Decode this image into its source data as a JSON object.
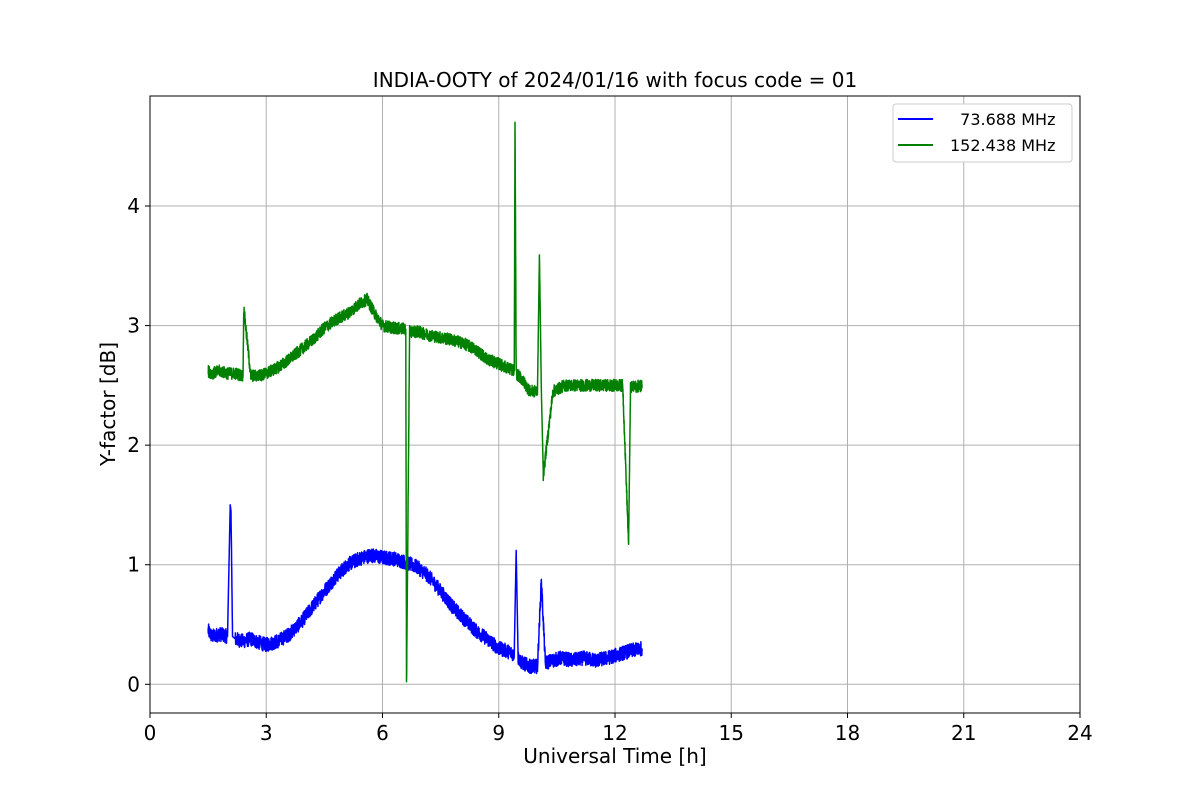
{
  "chart_data": {
    "type": "line",
    "title": "INDIA-OOTY of 2024/01/16 with focus code = 01",
    "xlabel": "Universal Time [h]",
    "ylabel": "Y-factor [dB]",
    "xlim": [
      0,
      24
    ],
    "ylim": [
      -0.24,
      4.92
    ],
    "xticks": [
      0,
      3,
      6,
      9,
      12,
      15,
      18,
      21,
      24
    ],
    "yticks": [
      0,
      1,
      2,
      3,
      4
    ],
    "grid": true,
    "legend_position": "top-right",
    "series": [
      {
        "name": "  73.688 MHz",
        "color": "#0000ff",
        "x": [
          1.5,
          1.6,
          1.8,
          2.0,
          2.07,
          2.09,
          2.13,
          2.2,
          2.4,
          2.6,
          2.8,
          3.0,
          3.3,
          3.6,
          3.9,
          4.2,
          4.5,
          4.8,
          5.1,
          5.4,
          5.7,
          6.0,
          6.3,
          6.6,
          6.9,
          7.2,
          7.5,
          7.8,
          8.1,
          8.4,
          8.7,
          9.0,
          9.2,
          9.4,
          9.45,
          9.5,
          9.6,
          9.8,
          10.0,
          10.1,
          10.2,
          10.4,
          10.6,
          10.9,
          11.2,
          11.5,
          11.8,
          12.1,
          12.4,
          12.7
        ],
        "values": [
          0.45,
          0.4,
          0.42,
          0.4,
          1.5,
          1.45,
          0.4,
          0.38,
          0.36,
          0.38,
          0.35,
          0.33,
          0.36,
          0.42,
          0.52,
          0.65,
          0.78,
          0.9,
          1.0,
          1.05,
          1.08,
          1.06,
          1.05,
          1.02,
          0.98,
          0.9,
          0.78,
          0.65,
          0.55,
          0.45,
          0.38,
          0.3,
          0.28,
          0.25,
          1.12,
          0.22,
          0.18,
          0.15,
          0.15,
          0.87,
          0.18,
          0.2,
          0.22,
          0.2,
          0.22,
          0.2,
          0.22,
          0.25,
          0.28,
          0.3
        ],
        "noise": 0.06
      },
      {
        "name": "152.438 MHz",
        "color": "#008000",
        "x": [
          1.5,
          1.6,
          1.8,
          2.0,
          2.2,
          2.4,
          2.42,
          2.6,
          2.8,
          3.0,
          3.3,
          3.6,
          3.9,
          4.2,
          4.5,
          4.8,
          5.1,
          5.4,
          5.6,
          5.8,
          6.0,
          6.3,
          6.6,
          6.62,
          6.7,
          6.9,
          7.2,
          7.5,
          7.8,
          8.1,
          8.4,
          8.7,
          9.0,
          9.2,
          9.4,
          9.42,
          9.45,
          9.6,
          9.8,
          10.0,
          10.05,
          10.1,
          10.15,
          10.4,
          10.7,
          11.0,
          11.3,
          11.6,
          11.9,
          12.2,
          12.35,
          12.4,
          12.7
        ],
        "values": [
          2.62,
          2.6,
          2.62,
          2.6,
          2.6,
          2.58,
          3.15,
          2.58,
          2.58,
          2.6,
          2.65,
          2.72,
          2.8,
          2.88,
          2.98,
          3.05,
          3.1,
          3.18,
          3.22,
          3.1,
          3.0,
          2.98,
          2.97,
          0.0,
          2.95,
          2.95,
          2.92,
          2.9,
          2.88,
          2.85,
          2.8,
          2.72,
          2.68,
          2.65,
          2.62,
          4.7,
          2.6,
          2.55,
          2.45,
          2.45,
          3.59,
          2.45,
          1.75,
          2.45,
          2.5,
          2.5,
          2.5,
          2.5,
          2.5,
          2.5,
          1.17,
          2.48,
          2.5
        ],
        "noise": 0.05
      }
    ]
  }
}
